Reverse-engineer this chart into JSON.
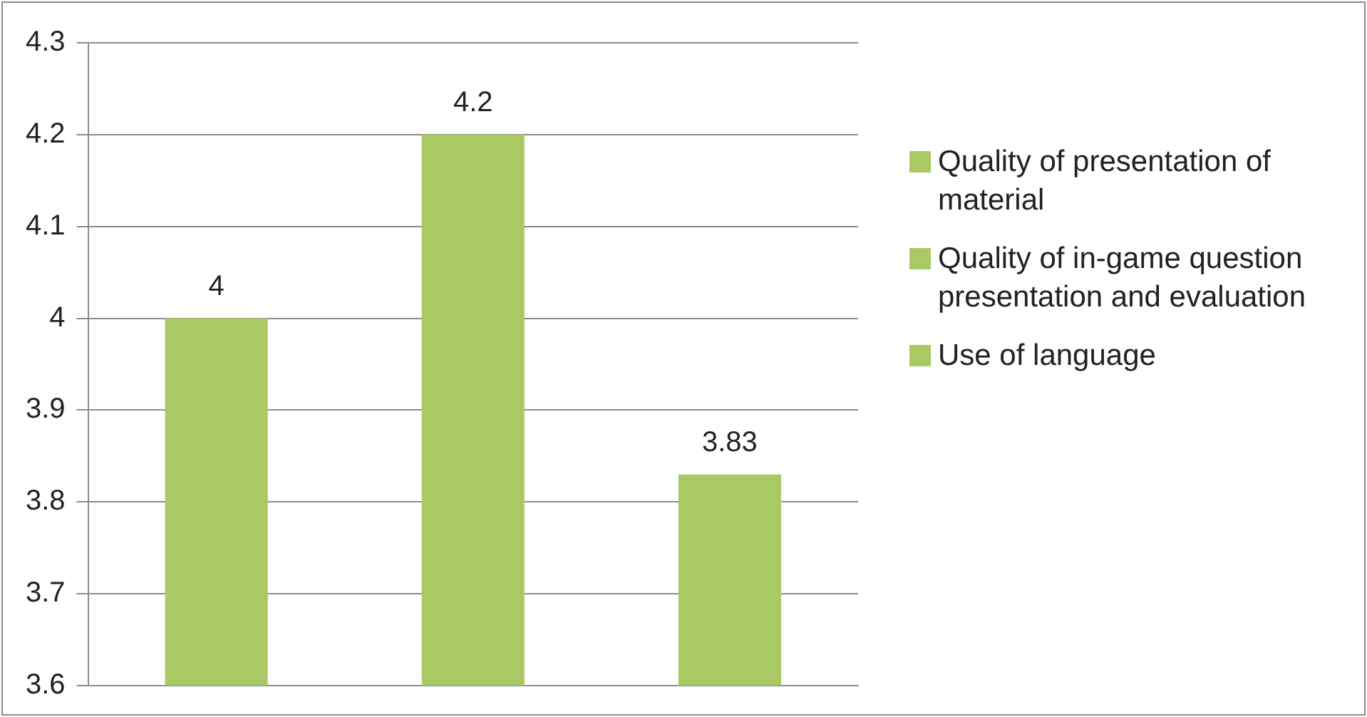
{
  "chart_data": {
    "type": "bar",
    "categories": [
      null,
      null,
      null
    ],
    "series": [
      {
        "name": "Quality of presentation of material",
        "color": "#a9c964",
        "values": [
          4,
          null,
          null
        ]
      },
      {
        "name": "Quality of in-game question presentation and evaluation",
        "color": "#a9c964",
        "values": [
          null,
          4.2,
          null
        ]
      },
      {
        "name": "Use of language",
        "color": "#a9c964",
        "values": [
          null,
          null,
          3.83
        ]
      }
    ],
    "ylim": [
      3.6,
      4.3
    ],
    "yticks": [
      3.6,
      3.7,
      3.8,
      3.9,
      4,
      4.1,
      4.2,
      4.3
    ],
    "grid": "y",
    "data_labels": true,
    "legend": "right"
  }
}
